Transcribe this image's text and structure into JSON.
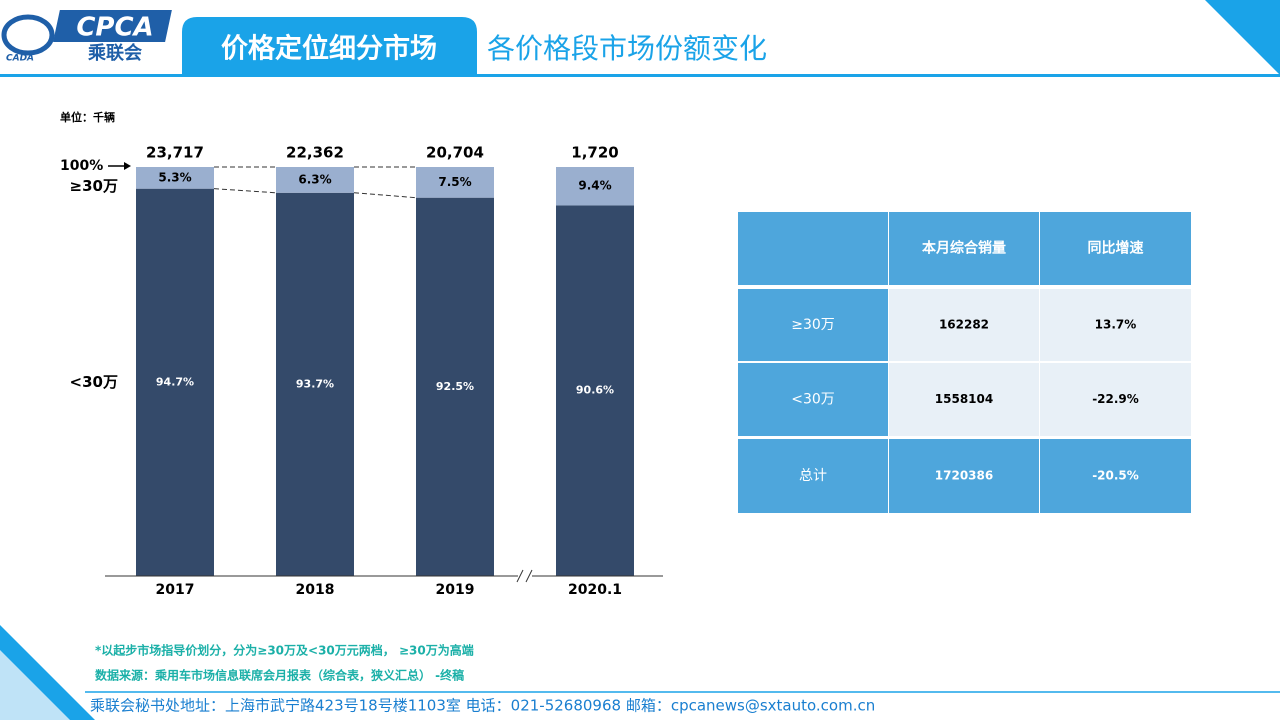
{
  "header": {
    "logo": "CPCA",
    "logo_sub": "乘联会",
    "logo_mark": "CADA",
    "title": "价格定位细分市场",
    "subtitle": "各价格段市场份额变化"
  },
  "chart_data": {
    "type": "bar",
    "stacked": true,
    "unit": "单位：千辆",
    "annotation": "100%",
    "categories": [
      "2017",
      "2018",
      "2019",
      "2020.1"
    ],
    "series": [
      {
        "name": "<30万",
        "color": "#344a6a",
        "values": [
          94.7,
          93.7,
          92.5,
          90.6
        ],
        "value_labels": [
          "94.7%",
          "93.7%",
          "92.5%",
          "90.6%"
        ]
      },
      {
        "name": "≥30万",
        "color": "#9aafcf",
        "values": [
          5.3,
          6.3,
          7.5,
          9.4
        ],
        "value_labels": [
          "5.3%",
          "6.3%",
          "7.5%",
          "9.4%"
        ]
      }
    ],
    "totals": {
      "values": [
        23717,
        22362,
        20704,
        1720
      ],
      "value_labels": [
        "23,717",
        "22,362",
        "20,704",
        "1,720"
      ]
    },
    "ylim": [
      0,
      100
    ]
  },
  "table": {
    "headers": [
      "本月综合销量",
      "同比增速"
    ],
    "rows": [
      [
        "≥30万",
        "162282",
        "13.7%"
      ],
      [
        "<30万",
        "1558104",
        "-22.9%"
      ],
      [
        "总计",
        "1720386",
        "-20.5%"
      ]
    ]
  },
  "notes": [
    "*以起步市场指导价划分，分为≥30万及<30万元两档， ≥30万为高端",
    "数据来源：乘用车市场信息联席会月报表（综合表，狭义汇总） -终稿"
  ],
  "footer": "乘联会秘书处地址：上海市武宁路423号18号楼1103室  电话：021-52680968   邮箱：cpcanews@sxtauto.com.cn"
}
